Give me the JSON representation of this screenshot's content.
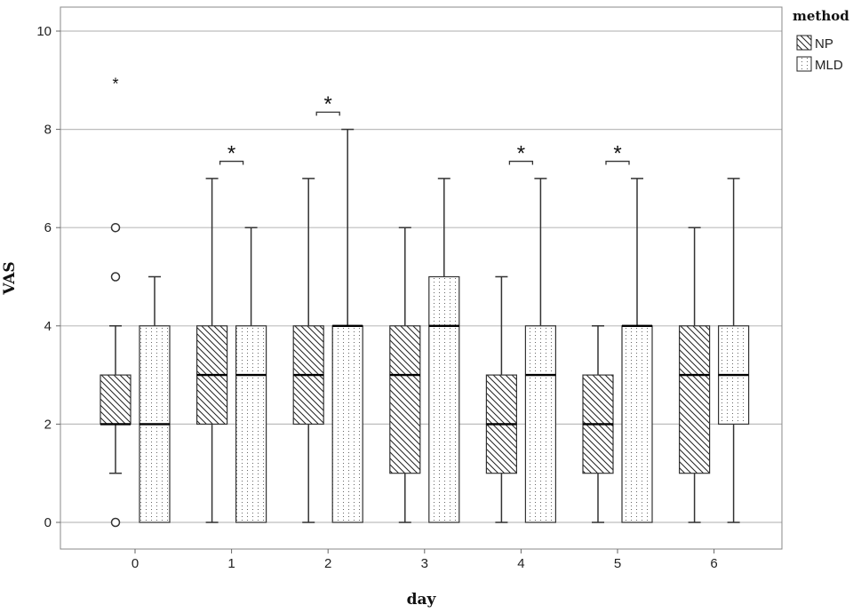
{
  "chart_data": {
    "type": "boxplot",
    "xlabel": "day",
    "ylabel": "VAS",
    "ylim": [
      0,
      10
    ],
    "yticks": [
      0,
      2,
      4,
      6,
      8,
      10
    ],
    "grid": true,
    "categories": [
      "0",
      "1",
      "2",
      "3",
      "4",
      "5",
      "6"
    ],
    "legend": {
      "title": "method",
      "placement": "top-right"
    },
    "series": [
      {
        "name": "NP",
        "pattern": "diagonal-hatch",
        "boxes": [
          {
            "min": 1,
            "q1": 2,
            "median": 2,
            "q3": 3,
            "max": 4,
            "outliers": [
              5,
              6,
              0
            ],
            "extremes": [
              9
            ]
          },
          {
            "min": 0,
            "q1": 2,
            "median": 3,
            "q3": 4,
            "max": 7,
            "outliers": [],
            "extremes": []
          },
          {
            "min": 0,
            "q1": 2,
            "median": 3,
            "q3": 4,
            "max": 7,
            "outliers": [],
            "extremes": []
          },
          {
            "min": 0,
            "q1": 1,
            "median": 3,
            "q3": 4,
            "max": 6,
            "outliers": [],
            "extremes": []
          },
          {
            "min": 0,
            "q1": 1,
            "median": 2,
            "q3": 3,
            "max": 5,
            "outliers": [],
            "extremes": []
          },
          {
            "min": 0,
            "q1": 1,
            "median": 2,
            "q3": 3,
            "max": 4,
            "outliers": [],
            "extremes": []
          },
          {
            "min": 0,
            "q1": 1,
            "median": 3,
            "q3": 4,
            "max": 6,
            "outliers": [],
            "extremes": []
          }
        ]
      },
      {
        "name": "MLD",
        "pattern": "dotted",
        "boxes": [
          {
            "min": 0,
            "q1": 0,
            "median": 2,
            "q3": 4,
            "max": 5,
            "outliers": [],
            "extremes": []
          },
          {
            "min": 0,
            "q1": 0,
            "median": 3,
            "q3": 4,
            "max": 6,
            "outliers": [],
            "extremes": []
          },
          {
            "min": 0,
            "q1": 0,
            "median": 4,
            "q3": 4,
            "max": 8,
            "outliers": [],
            "extremes": []
          },
          {
            "min": 0,
            "q1": 0,
            "median": 4,
            "q3": 5,
            "max": 7,
            "outliers": [],
            "extremes": []
          },
          {
            "min": 0,
            "q1": 0,
            "median": 3,
            "q3": 4,
            "max": 7,
            "outliers": [],
            "extremes": []
          },
          {
            "min": 0,
            "q1": 0,
            "median": 4,
            "q3": 4,
            "max": 7,
            "outliers": [],
            "extremes": []
          },
          {
            "min": 0,
            "q1": 2,
            "median": 3,
            "q3": 4,
            "max": 7,
            "outliers": [],
            "extremes": []
          }
        ]
      }
    ],
    "significance": [
      {
        "day": "1",
        "label": "*",
        "level": 7.35
      },
      {
        "day": "2",
        "label": "*",
        "level": 8.35
      },
      {
        "day": "4",
        "label": "*",
        "level": 7.35
      },
      {
        "day": "5",
        "label": "*",
        "level": 7.35
      }
    ]
  }
}
